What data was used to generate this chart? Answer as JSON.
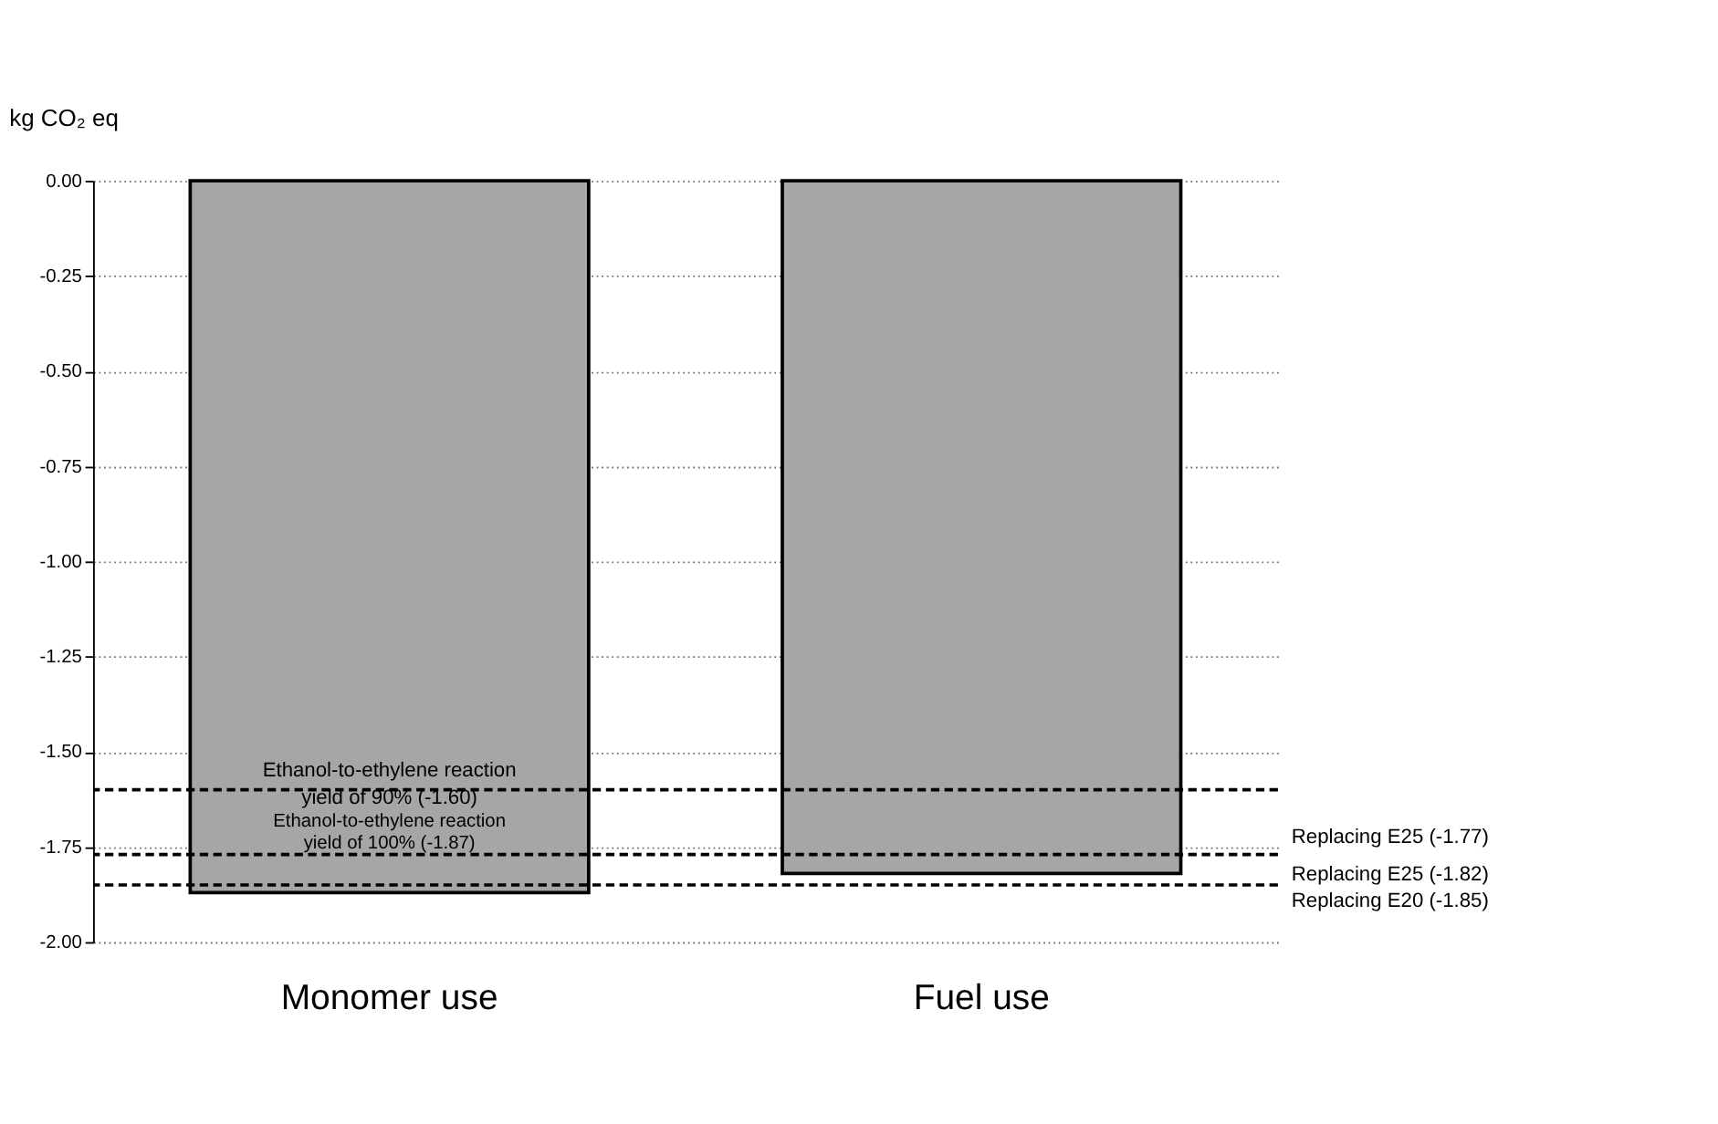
{
  "chart_data": {
    "type": "bar",
    "ylabel": "kg CO₂ eq",
    "categories": [
      "Monomer use",
      "Fuel use"
    ],
    "values": [
      -1.87,
      -1.82
    ],
    "color": "#a6a6a6",
    "ylim": [
      -2,
      0
    ],
    "yticks": [
      {
        "value": 0,
        "label": "0.00"
      },
      {
        "value": -0.25,
        "label": "-0.25"
      },
      {
        "value": -0.5,
        "label": "-0.50"
      },
      {
        "value": -0.75,
        "label": "-0.75"
      },
      {
        "value": -1,
        "label": "-1.00"
      },
      {
        "value": -1.25,
        "label": "-1.25"
      },
      {
        "value": -1.5,
        "label": "-1.50"
      },
      {
        "value": -1.75,
        "label": "-1.75"
      },
      {
        "value": -2,
        "label": "-2.00"
      }
    ],
    "grid": "y",
    "ref_lines": [
      {
        "axis": "y",
        "value": -1.6,
        "label": "Ethanol-to-ethylene reaction\nyield of  90% (-1.60)",
        "line_style": "dashed",
        "color": "#000000"
      },
      {
        "axis": "y",
        "value": -1.77,
        "label": "Replacing E25 (-1.77)",
        "line_style": "dashed",
        "color": "#000000"
      },
      {
        "axis": "y",
        "value": -1.85,
        "label": "Replacing E20 (-1.85)",
        "line_style": "dashed",
        "color": "#000000"
      }
    ],
    "annotations": [
      {
        "text": "Ethanol-to-ethylene reaction\nyield of  100% (-1.87)",
        "x": "Monomer use",
        "y": -1.87
      },
      "Replacing E25 (-1.82)"
    ]
  }
}
